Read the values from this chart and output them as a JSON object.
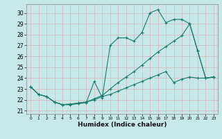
{
  "xlabel": "Humidex (Indice chaleur)",
  "bg_color": "#c8e8e8",
  "grid_color": "#b0d8d8",
  "line_color": "#1a7a6e",
  "xlim": [
    -0.5,
    23.5
  ],
  "ylim": [
    20.7,
    30.8
  ],
  "xticks": [
    0,
    1,
    2,
    3,
    4,
    5,
    6,
    7,
    8,
    9,
    10,
    11,
    12,
    13,
    14,
    15,
    16,
    17,
    18,
    19,
    20,
    21,
    22,
    23
  ],
  "yticks": [
    21,
    22,
    23,
    24,
    25,
    26,
    27,
    28,
    29,
    30
  ],
  "line1_x": [
    0,
    1,
    2,
    3,
    4,
    5,
    6,
    7,
    8,
    9,
    10,
    11,
    12,
    13,
    14,
    15,
    16,
    17,
    18,
    19,
    20,
    21,
    22,
    23
  ],
  "line1_y": [
    23.2,
    22.5,
    22.3,
    21.8,
    21.55,
    21.55,
    21.65,
    21.75,
    23.7,
    22.2,
    27.0,
    27.7,
    27.7,
    27.4,
    28.2,
    30.0,
    30.3,
    29.1,
    29.4,
    29.4,
    29.0,
    26.5,
    24.0,
    24.1
  ],
  "line2_x": [
    0,
    1,
    2,
    3,
    4,
    5,
    6,
    7,
    8,
    9,
    10,
    11,
    12,
    13,
    14,
    15,
    16,
    17,
    18,
    19,
    20,
    21,
    22,
    23
  ],
  "line2_y": [
    23.2,
    22.5,
    22.3,
    21.8,
    21.55,
    21.6,
    21.7,
    21.8,
    22.1,
    22.4,
    23.0,
    23.6,
    24.1,
    24.6,
    25.2,
    25.8,
    26.4,
    26.9,
    27.4,
    27.9,
    29.0,
    26.5,
    24.0,
    24.1
  ],
  "line3_x": [
    0,
    1,
    2,
    3,
    4,
    5,
    6,
    7,
    8,
    9,
    10,
    11,
    12,
    13,
    14,
    15,
    16,
    17,
    18,
    19,
    20,
    21,
    22,
    23
  ],
  "line3_y": [
    23.2,
    22.5,
    22.3,
    21.8,
    21.55,
    21.6,
    21.7,
    21.8,
    22.0,
    22.3,
    22.5,
    22.8,
    23.1,
    23.4,
    23.7,
    24.0,
    24.3,
    24.6,
    23.6,
    23.9,
    24.1,
    24.0,
    24.0,
    24.1
  ]
}
